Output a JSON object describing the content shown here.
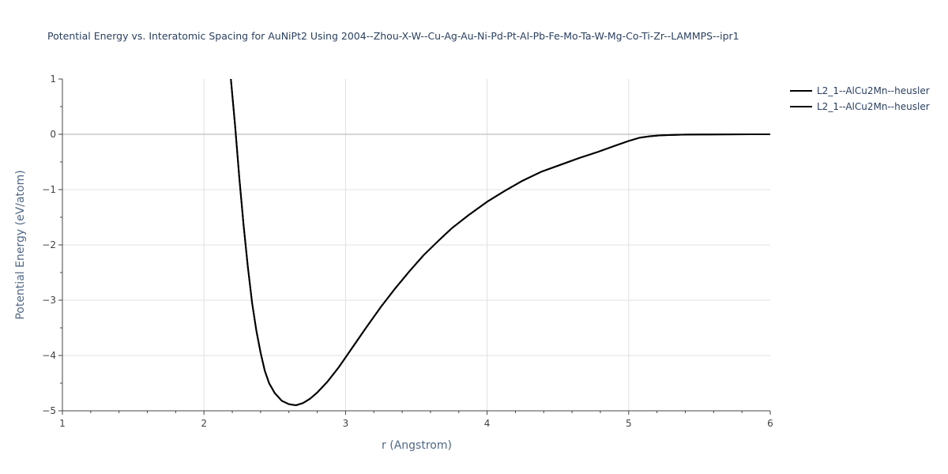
{
  "chart_data": {
    "type": "line",
    "title": "Potential Energy vs. Interatomic Spacing for AuNiPt2 Using 2004--Zhou-X-W--Cu-Ag-Au-Ni-Pd-Pt-Al-Pb-Fe-Mo-Ta-W-Mg-Co-Ti-Zr--LAMMPS--ipr1",
    "xlabel": "r (Angstrom)",
    "ylabel": "Potential Energy (eV/atom)",
    "xlim": [
      1,
      6
    ],
    "ylim": [
      -5,
      1
    ],
    "x_ticks": [
      "1",
      "2",
      "3",
      "4",
      "5",
      "6"
    ],
    "y_ticks": [
      "1",
      "0",
      "−1",
      "−2",
      "−3",
      "−4",
      "−5"
    ],
    "grid": true,
    "legend_position": "top-right",
    "line_color": "#000000",
    "series": [
      {
        "name": "L2_1--AlCu2Mn--heusler",
        "x": [
          2.19,
          2.22,
          2.25,
          2.28,
          2.31,
          2.34,
          2.37,
          2.4,
          2.43,
          2.46,
          2.5,
          2.55,
          2.6,
          2.65,
          2.7,
          2.75,
          2.8,
          2.87,
          2.95,
          3.05,
          3.15,
          3.25,
          3.35,
          3.45,
          3.55,
          3.65,
          3.75,
          3.87,
          4.0,
          4.12,
          4.25,
          4.38,
          4.52,
          4.65,
          4.78,
          4.9,
          5.0,
          5.08,
          5.15,
          5.22,
          5.3,
          5.4,
          5.55,
          5.7,
          5.85,
          6.0
        ],
        "y": [
          1.0,
          0.15,
          -0.8,
          -1.65,
          -2.4,
          -3.05,
          -3.55,
          -3.95,
          -4.28,
          -4.5,
          -4.68,
          -4.82,
          -4.88,
          -4.9,
          -4.86,
          -4.78,
          -4.67,
          -4.48,
          -4.22,
          -3.85,
          -3.48,
          -3.12,
          -2.79,
          -2.48,
          -2.19,
          -1.94,
          -1.7,
          -1.46,
          -1.22,
          -1.03,
          -0.84,
          -0.68,
          -0.55,
          -0.43,
          -0.32,
          -0.21,
          -0.12,
          -0.06,
          -0.035,
          -0.02,
          -0.012,
          -0.006,
          -0.003,
          -0.001,
          0.0,
          0.0
        ]
      },
      {
        "name": "L2_1--AlCu2Mn--heusler",
        "x": [
          2.19,
          2.22,
          2.25,
          2.28,
          2.31,
          2.34,
          2.37,
          2.4,
          2.43,
          2.46,
          2.5,
          2.55,
          2.6,
          2.65,
          2.7,
          2.75,
          2.8,
          2.87,
          2.95,
          3.05,
          3.15,
          3.25,
          3.35,
          3.45,
          3.55,
          3.65,
          3.75,
          3.87,
          4.0,
          4.12,
          4.25,
          4.38,
          4.52,
          4.65,
          4.78,
          4.9,
          5.0,
          5.08,
          5.15,
          5.22,
          5.3,
          5.4,
          5.55,
          5.7,
          5.85,
          6.0
        ],
        "y": [
          1.0,
          0.15,
          -0.8,
          -1.65,
          -2.4,
          -3.05,
          -3.55,
          -3.95,
          -4.28,
          -4.5,
          -4.68,
          -4.82,
          -4.88,
          -4.9,
          -4.86,
          -4.78,
          -4.67,
          -4.48,
          -4.22,
          -3.85,
          -3.48,
          -3.12,
          -2.79,
          -2.48,
          -2.19,
          -1.94,
          -1.7,
          -1.46,
          -1.22,
          -1.03,
          -0.84,
          -0.68,
          -0.55,
          -0.43,
          -0.32,
          -0.21,
          -0.12,
          -0.06,
          -0.035,
          -0.02,
          -0.012,
          -0.006,
          -0.003,
          -0.001,
          0.0,
          0.0
        ]
      }
    ]
  }
}
